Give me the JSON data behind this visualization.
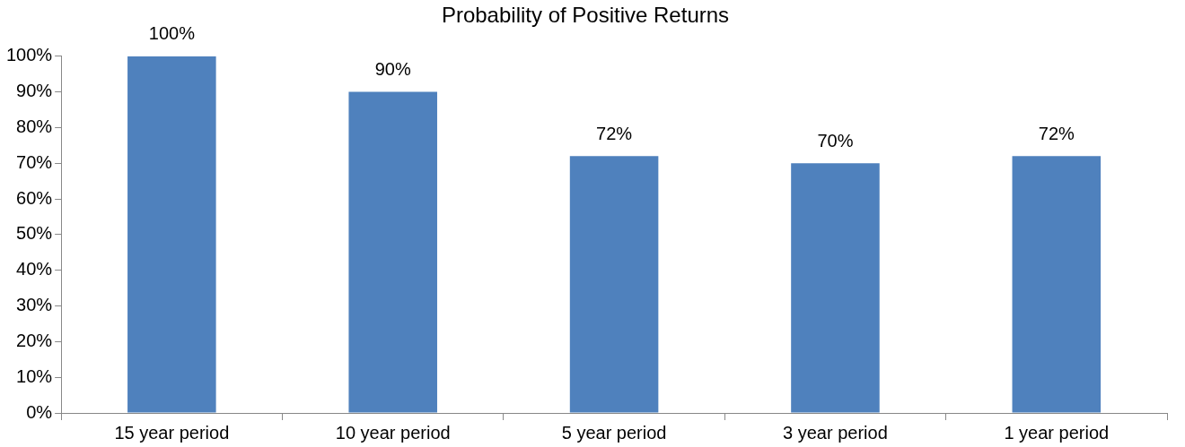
{
  "chart_data": {
    "type": "bar",
    "title": "Probability of Positive Returns",
    "categories": [
      "15 year period",
      "10 year period",
      "5 year period",
      "3 year period",
      "1 year period"
    ],
    "values": [
      100,
      90,
      72,
      70,
      72
    ],
    "value_labels": [
      "100%",
      "90%",
      "72%",
      "70%",
      "72%"
    ],
    "color": "#4f81bd",
    "ylim": [
      0,
      100
    ],
    "yticks": [
      {
        "value": 0,
        "label": "0%"
      },
      {
        "value": 10,
        "label": "10%"
      },
      {
        "value": 20,
        "label": "20%"
      },
      {
        "value": 30,
        "label": "30%"
      },
      {
        "value": 40,
        "label": "40%"
      },
      {
        "value": 50,
        "label": "50%"
      },
      {
        "value": 60,
        "label": "60%"
      },
      {
        "value": 70,
        "label": "70%"
      },
      {
        "value": 80,
        "label": "80%"
      },
      {
        "value": 90,
        "label": "90%"
      },
      {
        "value": 100,
        "label": "100%"
      }
    ],
    "grid": false,
    "legend": false
  }
}
